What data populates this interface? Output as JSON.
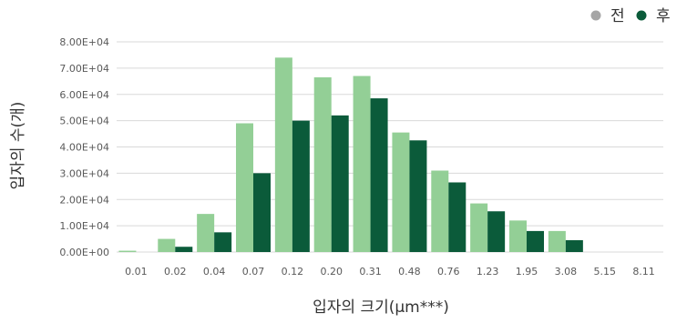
{
  "chart_data": {
    "type": "bar",
    "title": "",
    "xlabel": "입자의 크기(μm***)",
    "ylabel": "입자의 수(개)",
    "categories": [
      "0.01",
      "0.02",
      "0.04",
      "0.07",
      "0.12",
      "0.20",
      "0.31",
      "0.48",
      "0.76",
      "1.23",
      "1.95",
      "3.08",
      "5.15",
      "8.11"
    ],
    "series": [
      {
        "name": "전",
        "color": "#93cf96",
        "values": [
          500,
          5000,
          14500,
          49000,
          74000,
          66500,
          67000,
          45500,
          31000,
          18500,
          12000,
          8000,
          0,
          0
        ]
      },
      {
        "name": "후",
        "color": "#0b5b3a",
        "values": [
          0,
          2000,
          7500,
          30000,
          50000,
          52000,
          58500,
          42500,
          26500,
          15500,
          8000,
          4500,
          0,
          0
        ]
      }
    ],
    "ylim": [
      0,
      80000
    ],
    "yticks": [
      "0.00E+00",
      "1.00E+04",
      "2.00E+04",
      "3.00E+04",
      "4.00E+04",
      "5.00E+04",
      "6.00E+04",
      "7.00E+04",
      "8.00E+04"
    ],
    "grid": true,
    "legend": {
      "position": "top-right",
      "entries": [
        "전",
        "후"
      ],
      "marker_colors": [
        "#a6a6a6",
        "#0b5b3a"
      ]
    }
  }
}
